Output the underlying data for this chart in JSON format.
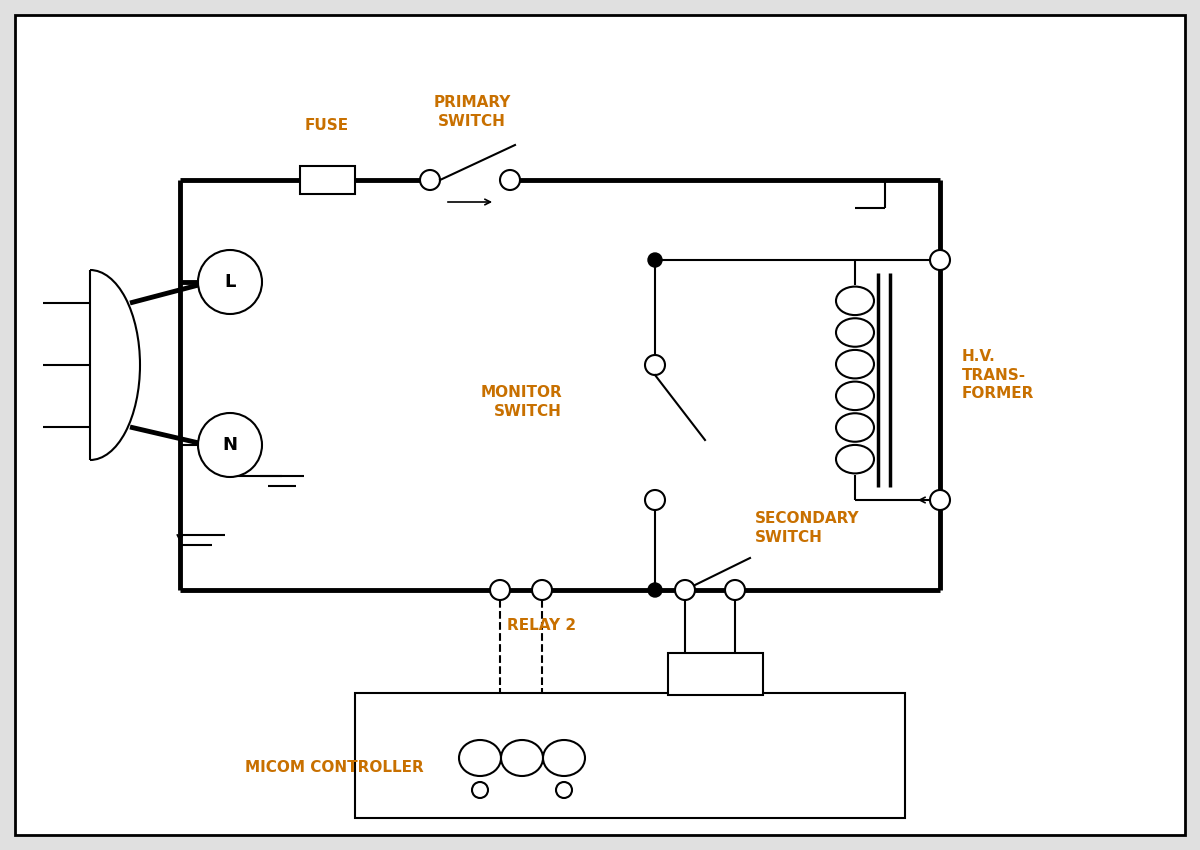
{
  "bg_color": "#e0e0e0",
  "diagram_bg": "#ffffff",
  "lc": "#000000",
  "tlw": 3.5,
  "nlw": 1.5,
  "tc": "#c87000",
  "lfs": 11,
  "lfw": "bold",
  "labels": {
    "fuse": "FUSE",
    "primary_switch": "PRIMARY\nSWITCH",
    "monitor_switch": "MONITOR\nSWITCH",
    "hv_transformer": "H.V.\nTRANS-\nFORMER",
    "secondary_switch": "SECONDARY\nSWITCH",
    "relay2": "RELAY 2",
    "micom": "MICOM CONTROLLER",
    "L": "L",
    "N": "N"
  },
  "xlim": [
    0,
    12
  ],
  "ylim": [
    0,
    8.5
  ]
}
